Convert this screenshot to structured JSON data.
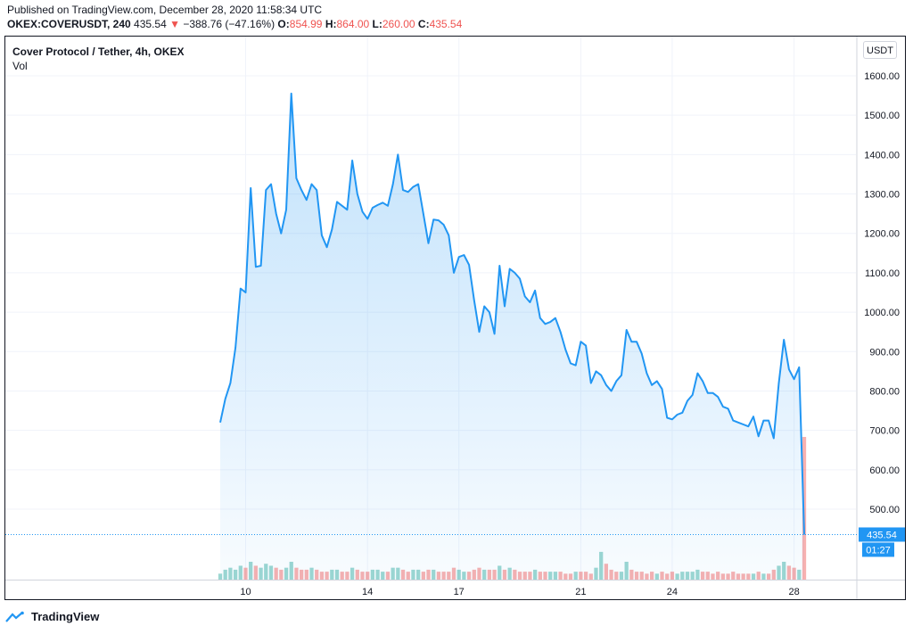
{
  "header": {
    "published": "Published on TradingView.com, December 28, 2020 11:58:34 UTC",
    "symbol": "OKEX:COVERUSDT, 240",
    "last": "435.54",
    "arrow": "▼",
    "change": "−388.76 (−47.16%)",
    "o_label": "O:",
    "o_value": "854.99",
    "h_label": "H:",
    "h_value": "864.00",
    "l_label": "L:",
    "l_value": "260.00",
    "c_label": "C:",
    "c_value": "435.54"
  },
  "legend": {
    "title": "Cover Protocol / Tether, 4h, OKEX",
    "vol": "Vol"
  },
  "unit_button": "USDT",
  "footer": {
    "brand": "TradingView"
  },
  "colors": {
    "line": "#2196f3",
    "area": "#2196f3",
    "vol_up": "#26a69a",
    "vol_down": "#ef5350",
    "tag": "#2196f3"
  },
  "chart_data": {
    "type": "area",
    "title": "Cover Protocol / Tether, 4h, OKEX",
    "ylim": [
      380,
      1650
    ],
    "y_ticks": [
      "500.00",
      "600.00",
      "700.00",
      "800.00",
      "900.00",
      "1000.00",
      "1100.00",
      "1200.00",
      "1300.00",
      "1400.00",
      "1500.00",
      "1600.00"
    ],
    "y_tick_values": [
      500,
      600,
      700,
      800,
      900,
      1000,
      1100,
      1200,
      1300,
      1400,
      1500,
      1600
    ],
    "x_ticks": [
      "10",
      "14",
      "17",
      "21",
      "24",
      "28"
    ],
    "x_tick_bars": [
      5,
      29,
      47,
      71,
      89,
      113
    ],
    "grid": true,
    "last_price_label": "435.54",
    "last_price": 435.54,
    "countdown_label": "01:27",
    "close": [
      720,
      780,
      820,
      910,
      1060,
      1050,
      1315,
      1115,
      1118,
      1310,
      1325,
      1250,
      1200,
      1260,
      1555,
      1340,
      1310,
      1285,
      1325,
      1310,
      1195,
      1165,
      1210,
      1280,
      1270,
      1260,
      1385,
      1300,
      1255,
      1237,
      1265,
      1272,
      1278,
      1270,
      1325,
      1400,
      1310,
      1305,
      1318,
      1325,
      1250,
      1175,
      1235,
      1233,
      1222,
      1195,
      1100,
      1140,
      1145,
      1120,
      1030,
      950,
      1015,
      1000,
      945,
      1118,
      1015,
      1110,
      1100,
      1085,
      1040,
      1025,
      1055,
      985,
      970,
      975,
      985,
      950,
      905,
      870,
      865,
      925,
      915,
      820,
      850,
      840,
      815,
      800,
      825,
      840,
      955,
      925,
      925,
      895,
      845,
      815,
      825,
      805,
      732,
      728,
      740,
      745,
      775,
      790,
      845,
      825,
      795,
      795,
      785,
      760,
      755,
      725,
      720,
      715,
      710,
      735,
      685,
      725,
      725,
      680,
      820,
      930,
      855,
      830,
      860,
      435.54
    ],
    "volume": [
      3,
      5,
      6,
      5,
      7,
      6,
      9,
      7,
      6,
      8,
      7,
      6,
      5,
      6,
      9,
      6,
      5,
      5,
      6,
      5,
      4,
      4,
      5,
      5,
      4,
      4,
      6,
      5,
      4,
      4,
      5,
      5,
      4,
      4,
      6,
      6,
      5,
      4,
      5,
      5,
      4,
      5,
      5,
      4,
      4,
      4,
      6,
      5,
      4,
      4,
      5,
      6,
      5,
      5,
      5,
      7,
      5,
      6,
      5,
      4,
      4,
      4,
      5,
      4,
      4,
      4,
      4,
      4,
      3,
      3,
      4,
      4,
      4,
      3,
      6,
      14,
      8,
      5,
      4,
      4,
      9,
      5,
      4,
      4,
      3,
      4,
      3,
      4,
      3,
      4,
      3,
      4,
      4,
      4,
      5,
      4,
      4,
      3,
      4,
      3,
      3,
      4,
      3,
      3,
      3,
      3,
      4,
      3,
      3,
      5,
      7,
      9,
      7,
      6,
      5,
      72
    ],
    "volume_up": [
      1,
      1,
      1,
      1,
      1,
      0,
      1,
      0,
      1,
      1,
      1,
      0,
      0,
      1,
      1,
      0,
      0,
      0,
      1,
      0,
      0,
      0,
      1,
      1,
      0,
      0,
      1,
      0,
      0,
      0,
      1,
      1,
      1,
      0,
      1,
      1,
      0,
      0,
      1,
      1,
      0,
      0,
      1,
      0,
      0,
      0,
      0,
      1,
      1,
      0,
      0,
      0,
      1,
      0,
      0,
      1,
      0,
      1,
      0,
      0,
      0,
      0,
      1,
      0,
      0,
      1,
      1,
      0,
      0,
      0,
      1,
      0,
      0,
      0,
      1,
      1,
      0,
      0,
      0,
      1,
      1,
      0,
      0,
      0,
      0,
      0,
      1,
      0,
      0,
      0,
      1,
      1,
      1,
      1,
      1,
      0,
      0,
      0,
      0,
      0,
      0,
      0,
      0,
      0,
      0,
      1,
      0,
      1,
      0,
      0,
      1,
      1,
      0,
      0,
      1,
      0
    ]
  }
}
